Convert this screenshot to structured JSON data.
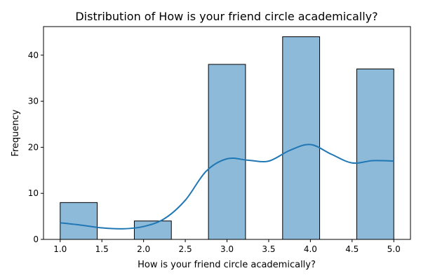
{
  "chart_data": {
    "type": "bar",
    "title": "Distribution of How is your friend circle academically?",
    "xlabel": "How is your friend circle academically?",
    "ylabel": "Frequency",
    "xlim": [
      0.8,
      5.2
    ],
    "ylim": [
      0,
      46.2
    ],
    "x_ticks": [
      "1.0",
      "1.5",
      "2.0",
      "2.5",
      "3.0",
      "3.5",
      "4.0",
      "4.5",
      "5.0"
    ],
    "y_ticks": [
      "0",
      "10",
      "20",
      "30",
      "40"
    ],
    "bins": [
      {
        "start": 1.0,
        "end": 1.444,
        "count": 8
      },
      {
        "start": 1.444,
        "end": 1.889,
        "count": 0
      },
      {
        "start": 1.889,
        "end": 2.333,
        "count": 4
      },
      {
        "start": 2.333,
        "end": 2.778,
        "count": 0
      },
      {
        "start": 2.778,
        "end": 3.222,
        "count": 38
      },
      {
        "start": 3.222,
        "end": 3.667,
        "count": 0
      },
      {
        "start": 3.667,
        "end": 4.111,
        "count": 44
      },
      {
        "start": 4.111,
        "end": 4.556,
        "count": 0
      },
      {
        "start": 4.556,
        "end": 5.0,
        "count": 37
      }
    ],
    "kde": {
      "x": [
        1.0,
        1.25,
        1.5,
        1.75,
        2.0,
        2.25,
        2.5,
        2.75,
        3.0,
        3.25,
        3.5,
        3.75,
        4.0,
        4.25,
        4.5,
        4.75,
        5.0
      ],
      "y": [
        3.6,
        3.1,
        2.5,
        2.3,
        2.8,
        4.5,
        8.5,
        14.8,
        17.5,
        17.2,
        17.0,
        19.3,
        20.6,
        18.5,
        16.6,
        17.1,
        17.0
      ]
    },
    "grid": false,
    "colors": {
      "bar_fill": "#8dbad9",
      "bar_edge": "#000000",
      "kde_line": "#1f77b4"
    }
  }
}
